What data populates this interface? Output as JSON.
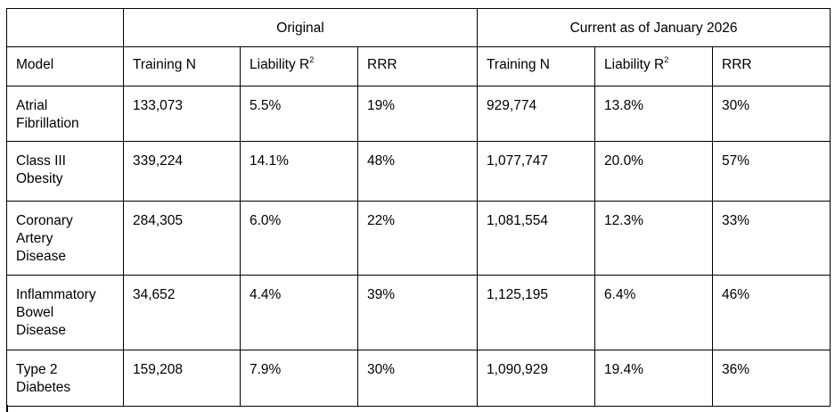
{
  "table": {
    "group_headers": {
      "original": "Original",
      "current": "Current as of January 2026"
    },
    "columns": {
      "model": "Model",
      "orig_training_n": "Training N",
      "orig_liability": "Liability R",
      "orig_liability_sup": "2",
      "orig_rrr": "RRR",
      "cur_training_n": "Training N",
      "cur_liability": "Liability R",
      "cur_liability_sup": "2",
      "cur_rrr": "RRR"
    },
    "rows": [
      {
        "model_lines": [
          "Atrial",
          "Fibrillation"
        ],
        "orig_training_n": "133,073",
        "orig_liability": "5.5%",
        "orig_rrr": "19%",
        "cur_training_n": "929,774",
        "cur_liability": "13.8%",
        "cur_rrr": "30%"
      },
      {
        "model_lines": [
          "Class III",
          "Obesity"
        ],
        "orig_training_n": "339,224",
        "orig_liability": "14.1%",
        "orig_rrr": "48%",
        "cur_training_n": "1,077,747",
        "cur_liability": "20.0%",
        "cur_rrr": "57%"
      },
      {
        "model_lines": [
          "Coronary",
          "Artery",
          "Disease"
        ],
        "orig_training_n": "284,305",
        "orig_liability": "6.0%",
        "orig_rrr": "22%",
        "cur_training_n": "1,081,554",
        "cur_liability": "12.3%",
        "cur_rrr": "33%"
      },
      {
        "model_lines": [
          "Inflammatory",
          "Bowel",
          "Disease"
        ],
        "orig_training_n": "34,652",
        "orig_liability": "4.4%",
        "orig_rrr": "39%",
        "cur_training_n": "1,125,195",
        "cur_liability": "6.4%",
        "cur_rrr": "46%"
      },
      {
        "model_lines": [
          "Type 2",
          "Diabetes"
        ],
        "orig_training_n": "159,208",
        "orig_liability": "7.9%",
        "orig_rrr": "30%",
        "cur_training_n": "1,090,929",
        "cur_liability": "19.4%",
        "cur_rrr": "36%"
      }
    ]
  }
}
